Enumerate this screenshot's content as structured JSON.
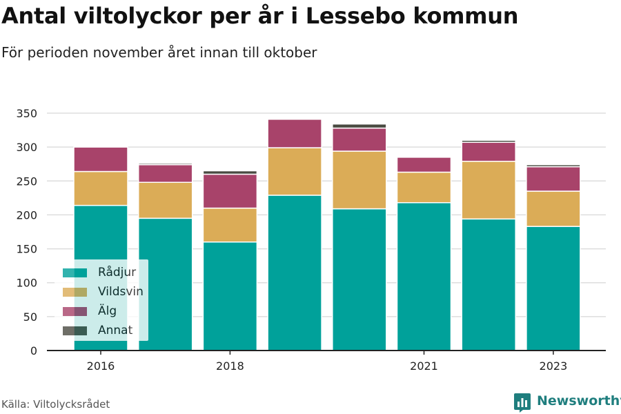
{
  "title": "Antal viltolyckor per år i Lessebo kommun",
  "subtitle": "För perioden november året innan till oktober",
  "source": "Källa: Viltolycksrådet",
  "brand": "Newsworthy",
  "colors": {
    "radjur": "#00a19a",
    "vildsvin": "#dbac57",
    "alg": "#a8436a",
    "annat": "#4a4b42",
    "grid": "#dddddd",
    "axis": "#222222",
    "brand": "#1f7e7e"
  },
  "chart_data": {
    "type": "bar",
    "stacked": true,
    "categories": [
      "2016",
      "2017",
      "2018",
      "2019",
      "2020",
      "2021",
      "2022",
      "2023"
    ],
    "x_tick_labels": [
      "2016",
      "",
      "2018",
      "",
      "",
      "2021",
      "",
      "2023"
    ],
    "series": [
      {
        "name": "Rådjur",
        "color": "#00a19a",
        "values": [
          214,
          195,
          160,
          229,
          209,
          218,
          194,
          183
        ]
      },
      {
        "name": "Vildsvin",
        "color": "#dbac57",
        "values": [
          50,
          53,
          50,
          70,
          85,
          45,
          85,
          52
        ]
      },
      {
        "name": "Älg",
        "color": "#a8436a",
        "values": [
          36,
          26,
          50,
          42,
          34,
          22,
          28,
          36
        ]
      },
      {
        "name": "Annat",
        "color": "#4a4b42",
        "values": [
          0,
          2,
          5,
          0,
          6,
          0,
          3,
          3
        ]
      }
    ],
    "ylim": [
      0,
      350
    ],
    "yticks": [
      0,
      50,
      100,
      150,
      200,
      250,
      300,
      350
    ],
    "grid": true,
    "legend": "bottom-left"
  }
}
